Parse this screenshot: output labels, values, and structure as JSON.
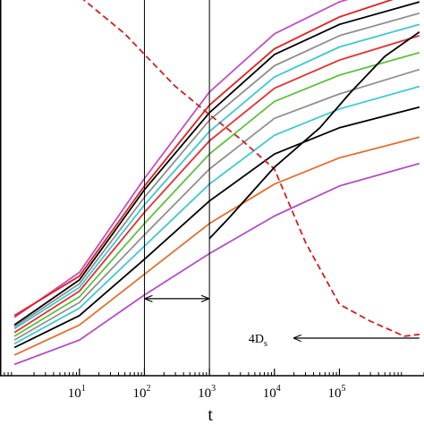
{
  "chart_data": {
    "type": "line",
    "title": "",
    "xlabel": "t",
    "ylabel": "",
    "xscale": "log",
    "xlim": [
      0.6,
      2000000
    ],
    "ylim": [
      0,
      10
    ],
    "grid": false,
    "legend": "none",
    "x_ticks": [
      {
        "value": 10,
        "base": "10",
        "exp": "1"
      },
      {
        "value": 100,
        "base": "10",
        "exp": "2"
      },
      {
        "value": 1000,
        "base": "10",
        "exp": "3"
      },
      {
        "value": 10000,
        "base": "10",
        "exp": "4"
      },
      {
        "value": 100000,
        "base": "10",
        "exp": "5"
      }
    ],
    "vertical_lines": [
      100,
      1000
    ],
    "arrow_interval": {
      "from": 100,
      "to": 1000,
      "y": 2.05
    },
    "annotation": {
      "text": "4D",
      "sub": "s",
      "x": 4000,
      "y": 1.0,
      "arrow_from": 20000,
      "arrow_to_x": 1700000
    },
    "series": [
      {
        "color": "#c050c0",
        "dashed": false,
        "points": [
          [
            1,
            1.55
          ],
          [
            10,
            2.75
          ],
          [
            100,
            5.25
          ],
          [
            1000,
            7.55
          ],
          [
            10000,
            9.1
          ],
          [
            100000,
            9.95
          ],
          [
            1700000,
            10.6
          ]
        ]
      },
      {
        "color": "#e02020",
        "dashed": false,
        "points": [
          [
            1,
            1.6
          ],
          [
            10,
            2.65
          ],
          [
            100,
            5.05
          ],
          [
            1000,
            7.2
          ],
          [
            10000,
            8.7
          ],
          [
            100000,
            9.55
          ],
          [
            1700000,
            10.25
          ]
        ]
      },
      {
        "color": "#000000",
        "dashed": false,
        "points": [
          [
            1,
            1.35
          ],
          [
            10,
            2.55
          ],
          [
            100,
            4.95
          ],
          [
            1000,
            7.0
          ],
          [
            10000,
            8.55
          ],
          [
            100000,
            9.35
          ],
          [
            1700000,
            9.95
          ]
        ]
      },
      {
        "color": "#909090",
        "dashed": false,
        "points": [
          [
            1,
            1.3
          ],
          [
            10,
            2.45
          ],
          [
            100,
            4.75
          ],
          [
            1000,
            6.8
          ],
          [
            10000,
            8.25
          ],
          [
            100000,
            9.05
          ],
          [
            1700000,
            9.65
          ]
        ]
      },
      {
        "color": "#40c8d0",
        "dashed": false,
        "points": [
          [
            1,
            1.25
          ],
          [
            10,
            2.35
          ],
          [
            100,
            4.55
          ],
          [
            1000,
            6.5
          ],
          [
            10000,
            7.95
          ],
          [
            100000,
            8.75
          ],
          [
            1700000,
            9.35
          ]
        ]
      },
      {
        "color": "#e03030",
        "dashed": false,
        "points": [
          [
            1,
            1.15
          ],
          [
            10,
            2.25
          ],
          [
            100,
            4.35
          ],
          [
            1000,
            6.25
          ],
          [
            10000,
            7.65
          ],
          [
            100000,
            8.4
          ],
          [
            1700000,
            9.05
          ]
        ]
      },
      {
        "color": "#60c040",
        "dashed": false,
        "points": [
          [
            1,
            1.05
          ],
          [
            10,
            2.1
          ],
          [
            100,
            4.05
          ],
          [
            1000,
            5.9
          ],
          [
            10000,
            7.3
          ],
          [
            100000,
            8.0
          ],
          [
            1700000,
            8.6
          ]
        ]
      },
      {
        "color": "#909090",
        "dashed": false,
        "points": [
          [
            1,
            0.95
          ],
          [
            10,
            1.95
          ],
          [
            100,
            3.75
          ],
          [
            1000,
            5.5
          ],
          [
            10000,
            6.85
          ],
          [
            100000,
            7.5
          ],
          [
            1700000,
            8.15
          ]
        ]
      },
      {
        "color": "#40c8d0",
        "dashed": false,
        "points": [
          [
            1,
            0.85
          ],
          [
            10,
            1.8
          ],
          [
            100,
            3.45
          ],
          [
            1000,
            5.1
          ],
          [
            10000,
            6.4
          ],
          [
            100000,
            7.1
          ],
          [
            1700000,
            7.7
          ]
        ]
      },
      {
        "color": "#000000",
        "dashed": false,
        "points": [
          [
            1,
            0.75
          ],
          [
            10,
            1.6
          ],
          [
            100,
            3.1
          ],
          [
            1000,
            4.65
          ],
          [
            10000,
            5.9
          ],
          [
            100000,
            6.6
          ],
          [
            1700000,
            7.15
          ]
        ]
      },
      {
        "color": "#e07030",
        "dashed": false,
        "points": [
          [
            1,
            0.55
          ],
          [
            10,
            1.35
          ],
          [
            100,
            2.7
          ],
          [
            1000,
            4.05
          ],
          [
            10000,
            5.1
          ],
          [
            100000,
            5.8
          ],
          [
            1700000,
            6.35
          ]
        ]
      },
      {
        "color": "#b050c0",
        "dashed": false,
        "points": [
          [
            1,
            0.3
          ],
          [
            10,
            0.95
          ],
          [
            100,
            2.15
          ],
          [
            1000,
            3.25
          ],
          [
            10000,
            4.25
          ],
          [
            100000,
            5.05
          ],
          [
            1700000,
            5.65
          ]
        ]
      },
      {
        "color": "#d02020",
        "dashed": true,
        "points": [
          [
            1,
            10.6
          ],
          [
            10,
            10.1
          ],
          [
            50,
            9.1
          ],
          [
            100,
            8.55
          ],
          [
            300,
            7.7
          ],
          [
            1000,
            6.95
          ],
          [
            3000,
            6.3
          ],
          [
            10000,
            5.5
          ],
          [
            30000,
            3.55
          ],
          [
            100000,
            1.9
          ],
          [
            300000,
            1.45
          ],
          [
            1000000,
            1.05
          ],
          [
            1700000,
            1.1
          ]
        ]
      },
      {
        "color": "#000000",
        "dashed": false,
        "points": [
          [
            1000,
            3.65
          ],
          [
            2000,
            4.2
          ],
          [
            10000,
            5.55
          ],
          [
            50000,
            6.6
          ],
          [
            150000,
            7.55
          ],
          [
            500000,
            8.5
          ],
          [
            1700000,
            9.15
          ]
        ]
      }
    ]
  }
}
